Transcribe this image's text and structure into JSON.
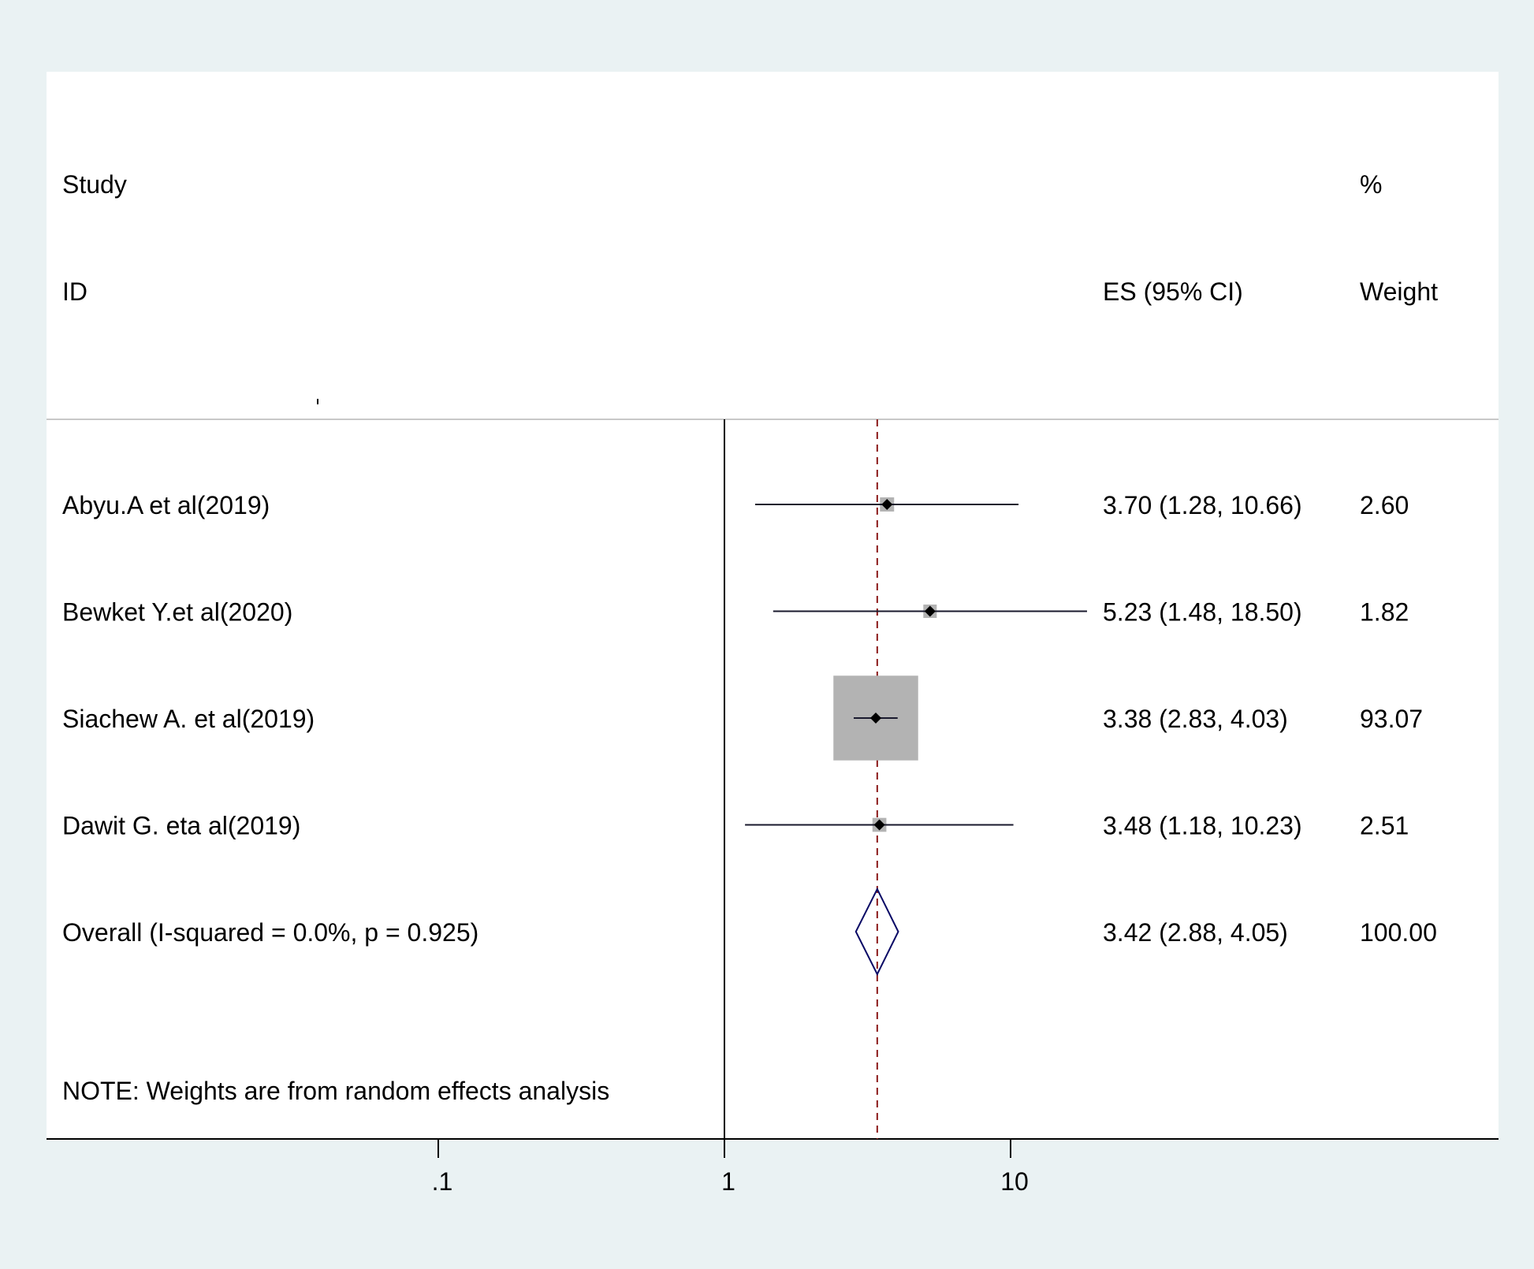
{
  "chart_data": {
    "type": "forest",
    "header": {
      "study_top": "Study",
      "study_bottom": "ID",
      "es_label": "ES (95% CI)",
      "weight_top": "%",
      "weight_bottom": "Weight"
    },
    "x_scale": "log",
    "xlim": [
      0.01,
      100
    ],
    "xticks": [
      {
        "value": 0.1,
        "label": ".1"
      },
      {
        "value": 1,
        "label": "1"
      },
      {
        "value": 10,
        "label": "10"
      }
    ],
    "null_line": 1,
    "overall_line": 3.42,
    "studies": [
      {
        "id": "Abyu.A et al(2019)",
        "es": 3.7,
        "lo": 1.28,
        "hi": 10.66,
        "es_text": "3.70 (1.28, 10.66)",
        "weight": 2.6,
        "weight_text": "2.60"
      },
      {
        "id": "Bewket Y.et al(2020)",
        "es": 5.23,
        "lo": 1.48,
        "hi": 18.5,
        "es_text": "5.23 (1.48, 18.50)",
        "weight": 1.82,
        "weight_text": "1.82",
        "truncated_hi": true
      },
      {
        "id": "Siachew A. et al(2019)",
        "es": 3.38,
        "lo": 2.83,
        "hi": 4.03,
        "es_text": "3.38 (2.83, 4.03)",
        "weight": 93.07,
        "weight_text": "93.07"
      },
      {
        "id": "Dawit G. eta al(2019)",
        "es": 3.48,
        "lo": 1.18,
        "hi": 10.23,
        "es_text": "3.48 (1.18, 10.23)",
        "weight": 2.51,
        "weight_text": "2.51"
      }
    ],
    "overall": {
      "label": "Overall  (I-squared = 0.0%, p = 0.925)",
      "es": 3.42,
      "lo": 2.88,
      "hi": 4.05,
      "es_text": "3.42 (2.88, 4.05)",
      "weight_text": "100.00"
    },
    "note": "NOTE: Weights are from random effects analysis",
    "colors": {
      "background": "#eaf2f3",
      "panel": "#ffffff",
      "weight_box": "#b3b3b3",
      "ci_line": "#1a1a2e",
      "diamond": "#0a0a66",
      "overall_line": "#8b1a1a"
    }
  }
}
